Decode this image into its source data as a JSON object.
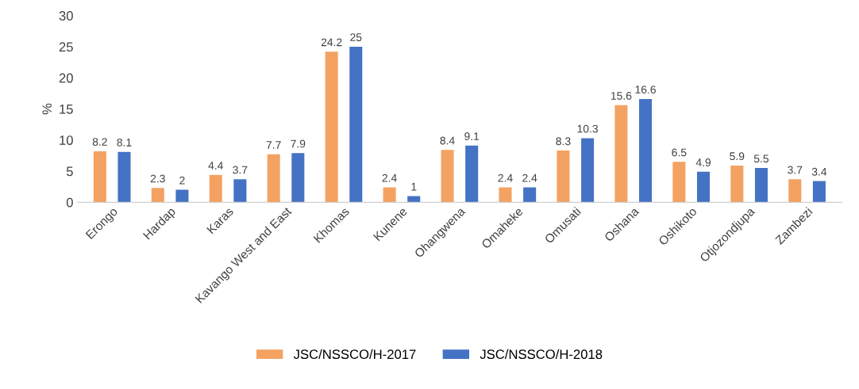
{
  "chart_data": {
    "type": "bar",
    "ylabel": "%",
    "categories": [
      "Erongo",
      "Hardap",
      "Karas",
      "Kavango West and East",
      "Khomas",
      "Kunene",
      "Ohangwena",
      "Omaheke",
      "Omusati",
      "Oshana",
      "Oshikoto",
      "Otjozondjupa",
      "Zambezi"
    ],
    "series": [
      {
        "name": "JSC/NSSCO/H-2017",
        "color": "#f4a261",
        "values": [
          8.2,
          2.3,
          4.4,
          7.7,
          24.2,
          2.4,
          8.4,
          2.4,
          8.3,
          15.6,
          6.5,
          5.9,
          3.7
        ]
      },
      {
        "name": "JSC/NSSCO/H-2018",
        "color": "#4472c4",
        "values": [
          8.1,
          2,
          3.7,
          7.9,
          25,
          1,
          9.1,
          2.4,
          10.3,
          16.6,
          4.9,
          5.5,
          3.4
        ]
      }
    ],
    "ylim": [
      0,
      30
    ],
    "yticks": [
      0,
      5,
      10,
      15,
      20,
      25,
      30
    ],
    "grid": false,
    "legend": "bottom",
    "data_labels": true
  }
}
